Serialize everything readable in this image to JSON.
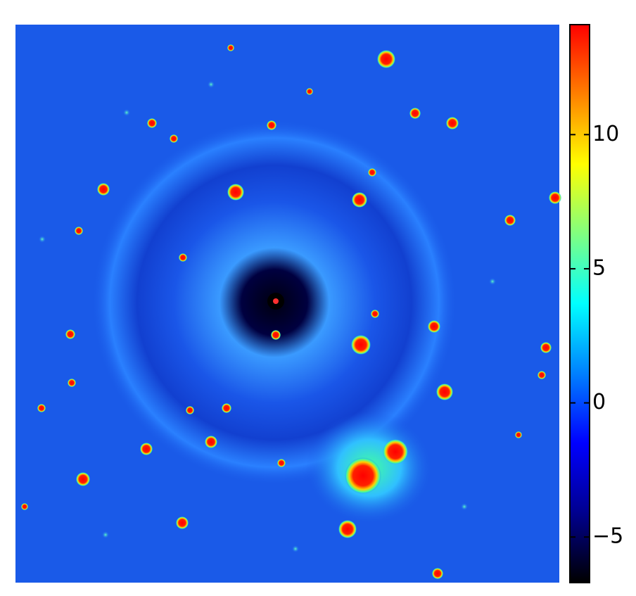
{
  "chart_data": {
    "type": "image",
    "colormap": [
      "#000000",
      "#00008f",
      "#0000ff",
      "#0080ff",
      "#00ffff",
      "#80ff80",
      "#ffff00",
      "#ff8000",
      "#ff0000"
    ],
    "clim": [
      -6.7,
      14.1
    ],
    "cticks": [
      {
        "value": -5,
        "label": "−5"
      },
      0,
      5,
      10
    ]
  }
}
